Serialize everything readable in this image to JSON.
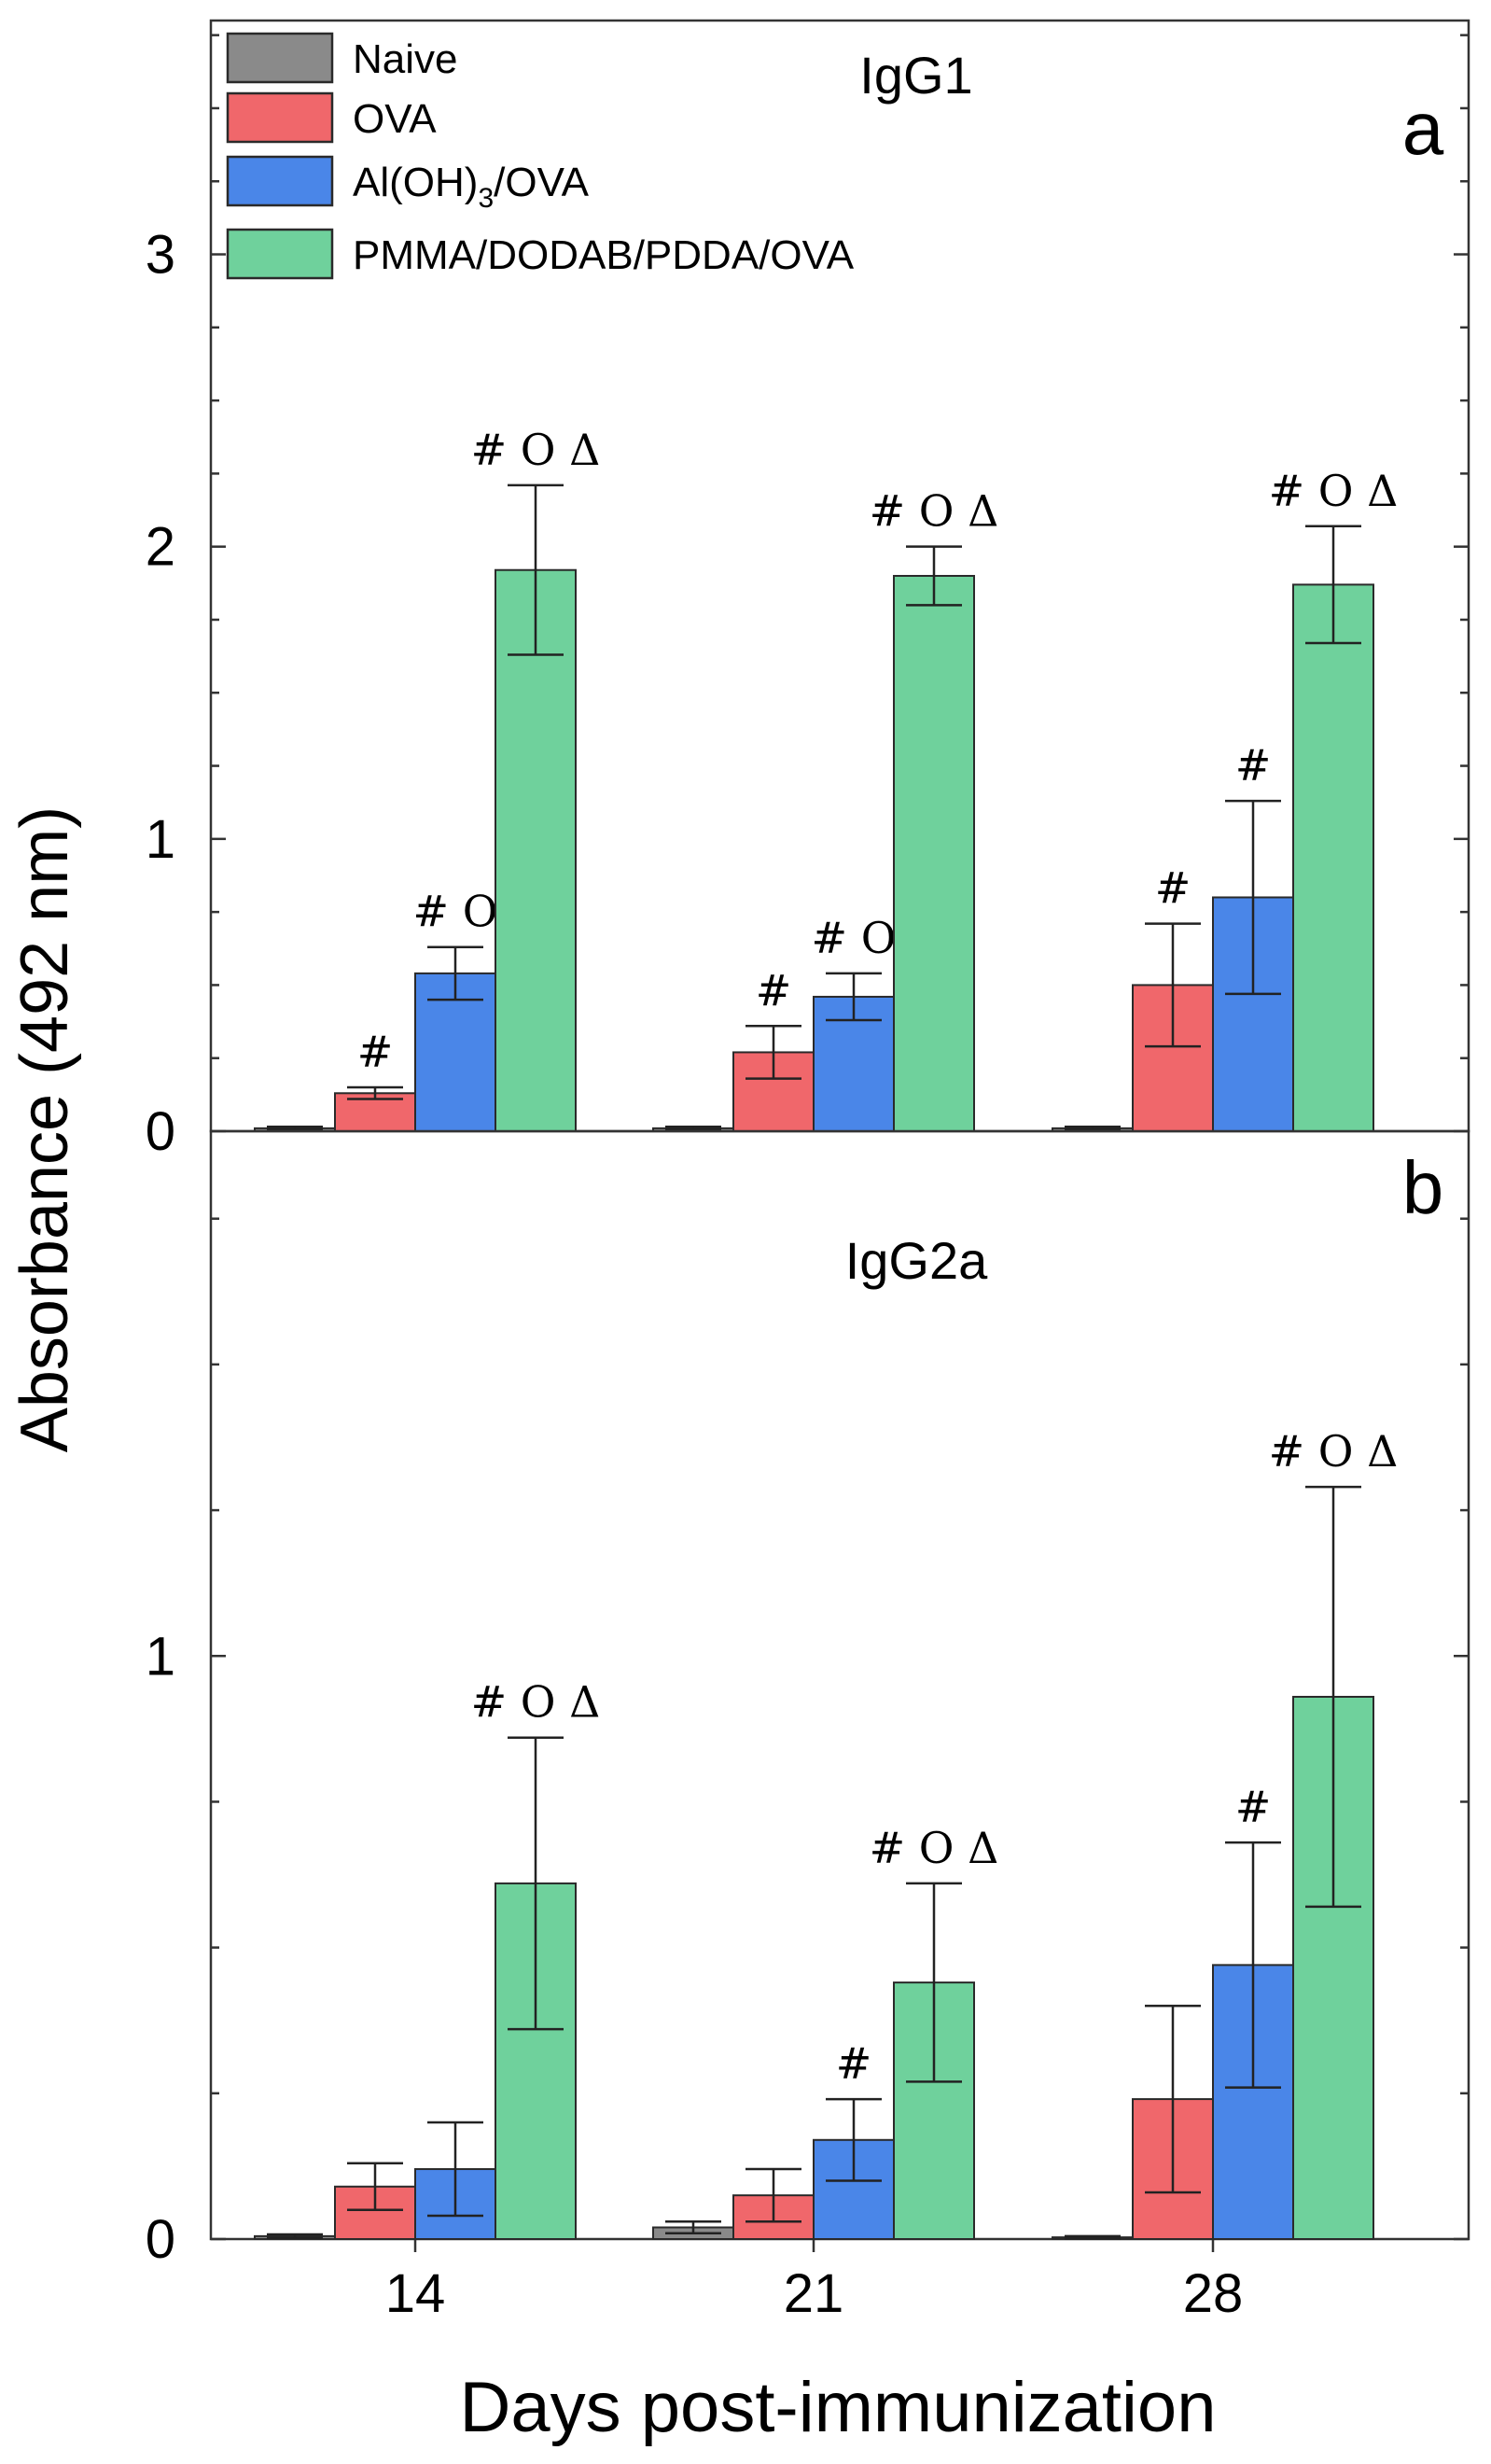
{
  "y_axis_label": "Absorbance (492 nm)",
  "x_axis_label": "Days post-immunization",
  "legend": [
    {
      "label": "Naive",
      "color": "#8a8a8a"
    },
    {
      "label": "OVA",
      "color": "#f0676b"
    },
    {
      "label": "Al(OH)",
      "sub": "3",
      "suffix": "/OVA",
      "color": "#4a86e8"
    },
    {
      "label": "PMMA/DODAB/PDDA/OVA",
      "color": "#6fd19c"
    }
  ],
  "chart_data": [
    {
      "type": "bar",
      "panel": "a",
      "title": "IgG1",
      "categories": [
        "14",
        "21",
        "28"
      ],
      "ylim": [
        0,
        3.8
      ],
      "yticks": [
        "0",
        "1",
        "2",
        "3"
      ],
      "series": [
        {
          "name": "Naive",
          "color": "#8a8a8a",
          "values": [
            0.01,
            0.01,
            0.01
          ],
          "errors": [
            0.005,
            0.005,
            0.005
          ],
          "marks": [
            "",
            "",
            ""
          ]
        },
        {
          "name": "OVA",
          "color": "#f0676b",
          "values": [
            0.13,
            0.27,
            0.5
          ],
          "errors": [
            0.02,
            0.09,
            0.21
          ],
          "marks": [
            "#",
            "#",
            "#"
          ]
        },
        {
          "name": "Al(OH)3/OVA",
          "color": "#4a86e8",
          "values": [
            0.54,
            0.46,
            0.8
          ],
          "errors": [
            0.09,
            0.08,
            0.33
          ],
          "marks": [
            "# O",
            "# O",
            "#"
          ]
        },
        {
          "name": "PMMA/DODAB/PDDA/OVA",
          "color": "#6fd19c",
          "values": [
            1.92,
            1.9,
            1.87
          ],
          "errors": [
            0.29,
            0.1,
            0.2
          ],
          "marks": [
            "# O Δ",
            "# O Δ",
            "# O Δ"
          ]
        }
      ]
    },
    {
      "type": "bar",
      "panel": "b",
      "title": "IgG2a",
      "categories": [
        "14",
        "21",
        "28"
      ],
      "ylim": [
        0,
        1.9
      ],
      "yticks": [
        "0",
        "1"
      ],
      "series": [
        {
          "name": "Naive",
          "color": "#8a8a8a",
          "values": [
            0.005,
            0.02,
            0.003
          ],
          "errors": [
            0.003,
            0.01,
            0.002
          ],
          "marks": [
            "",
            "",
            ""
          ]
        },
        {
          "name": "OVA",
          "color": "#f0676b",
          "values": [
            0.09,
            0.075,
            0.24
          ],
          "errors": [
            0.04,
            0.045,
            0.16
          ],
          "marks": [
            "",
            "",
            ""
          ]
        },
        {
          "name": "Al(OH)3/OVA",
          "color": "#4a86e8",
          "values": [
            0.12,
            0.17,
            0.47
          ],
          "errors": [
            0.08,
            0.07,
            0.21
          ],
          "marks": [
            "",
            "#",
            "#"
          ]
        },
        {
          "name": "PMMA/DODAB/PDDA/OVA",
          "color": "#6fd19c",
          "values": [
            0.61,
            0.44,
            0.93
          ],
          "errors": [
            0.25,
            0.17,
            0.36
          ],
          "marks": [
            "# O Δ",
            "# O Δ",
            "# O Δ"
          ]
        }
      ]
    }
  ]
}
